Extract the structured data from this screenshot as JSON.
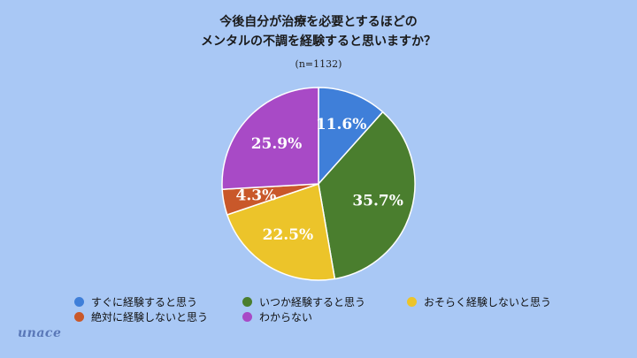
{
  "title_line1": "今後自分が治療を必要とするほどの",
  "title_line2": "メンタルの不調を経験すると思いますか？",
  "sample_size": "(n=1132)",
  "brand": "unace",
  "colors": {
    "background": "#a9c8f5",
    "label": "#ffffff",
    "edge": "#ffffff"
  },
  "chart_data": {
    "type": "pie",
    "start_angle_deg": 0,
    "direction": "clockwise",
    "slices": [
      {
        "name": "すぐに経験すると思う",
        "value": 11.6,
        "label": "11.6%",
        "color": "#3f7fd9"
      },
      {
        "name": "いつか経験すると思う",
        "value": 35.7,
        "label": "35.7%",
        "color": "#4a7e2e"
      },
      {
        "name": "おそらく経験しないと思う",
        "value": 22.5,
        "label": "22.5%",
        "color": "#ecc42a"
      },
      {
        "name": "絶対に経験しないと思う",
        "value": 4.3,
        "label": "4.3%",
        "color": "#c9582a"
      },
      {
        "name": "わからない",
        "value": 25.9,
        "label": "25.9%",
        "color": "#a84ac6"
      }
    ],
    "legend_position": "bottom"
  }
}
